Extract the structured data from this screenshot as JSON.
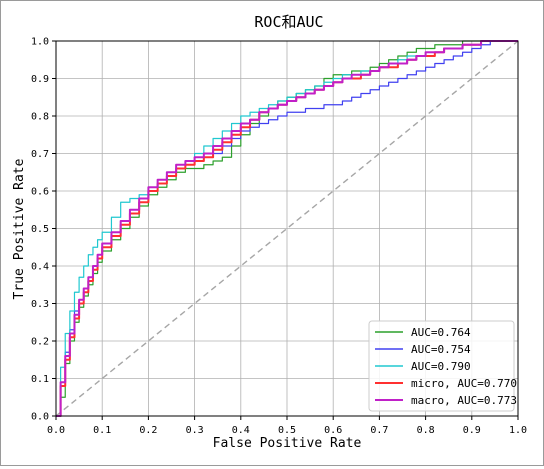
{
  "chart_data": {
    "type": "line",
    "title": "ROC和AUC",
    "xlabel": "False Positive Rate",
    "ylabel": "True Positive Rate",
    "xlim": [
      0.0,
      1.0
    ],
    "ylim": [
      0.0,
      1.0
    ],
    "xticks": [
      "0.0",
      "0.1",
      "0.2",
      "0.3",
      "0.4",
      "0.5",
      "0.6",
      "0.7",
      "0.8",
      "0.9",
      "1.0"
    ],
    "yticks": [
      "0.0",
      "0.1",
      "0.2",
      "0.3",
      "0.4",
      "0.5",
      "0.6",
      "0.7",
      "0.8",
      "0.9",
      "1.0"
    ],
    "grid": true,
    "legend_position": "lower-right",
    "diagonal": {
      "x": [
        0,
        1
      ],
      "y": [
        0,
        1
      ],
      "color": "#a6a6a6",
      "style": "dashed"
    },
    "series": [
      {
        "name": "AUC=0.764",
        "color": "#2ca02c",
        "x": [
          0,
          0.01,
          0.02,
          0.03,
          0.04,
          0.05,
          0.06,
          0.07,
          0.08,
          0.09,
          0.1,
          0.12,
          0.14,
          0.16,
          0.18,
          0.2,
          0.22,
          0.24,
          0.26,
          0.28,
          0.3,
          0.32,
          0.34,
          0.36,
          0.38,
          0.4,
          0.42,
          0.44,
          0.46,
          0.48,
          0.5,
          0.52,
          0.54,
          0.56,
          0.58,
          0.6,
          0.62,
          0.64,
          0.66,
          0.68,
          0.7,
          0.72,
          0.74,
          0.76,
          0.78,
          0.8,
          0.82,
          0.84,
          0.86,
          0.88,
          0.9,
          0.92,
          0.94,
          1.0
        ],
        "y": [
          0,
          0.05,
          0.14,
          0.2,
          0.25,
          0.29,
          0.32,
          0.35,
          0.38,
          0.41,
          0.44,
          0.47,
          0.5,
          0.53,
          0.56,
          0.59,
          0.61,
          0.63,
          0.65,
          0.66,
          0.66,
          0.67,
          0.68,
          0.69,
          0.72,
          0.75,
          0.78,
          0.8,
          0.82,
          0.84,
          0.85,
          0.86,
          0.87,
          0.88,
          0.9,
          0.91,
          0.91,
          0.92,
          0.92,
          0.93,
          0.94,
          0.95,
          0.96,
          0.97,
          0.98,
          0.98,
          0.99,
          0.99,
          0.99,
          1.0,
          1.0,
          1.0,
          1.0,
          1.0
        ]
      },
      {
        "name": "AUC=0.754",
        "color": "#4040f0",
        "x": [
          0,
          0.01,
          0.02,
          0.03,
          0.04,
          0.05,
          0.06,
          0.07,
          0.08,
          0.09,
          0.1,
          0.12,
          0.14,
          0.16,
          0.18,
          0.2,
          0.22,
          0.24,
          0.26,
          0.28,
          0.3,
          0.32,
          0.34,
          0.36,
          0.38,
          0.4,
          0.42,
          0.44,
          0.46,
          0.48,
          0.5,
          0.52,
          0.54,
          0.56,
          0.58,
          0.6,
          0.62,
          0.64,
          0.66,
          0.68,
          0.7,
          0.72,
          0.74,
          0.76,
          0.78,
          0.8,
          0.82,
          0.84,
          0.86,
          0.88,
          0.9,
          0.92,
          0.94,
          1.0
        ],
        "y": [
          0,
          0.09,
          0.17,
          0.23,
          0.28,
          0.31,
          0.34,
          0.37,
          0.39,
          0.42,
          0.45,
          0.48,
          0.51,
          0.54,
          0.57,
          0.6,
          0.62,
          0.64,
          0.66,
          0.67,
          0.68,
          0.69,
          0.7,
          0.72,
          0.74,
          0.76,
          0.77,
          0.78,
          0.79,
          0.8,
          0.81,
          0.81,
          0.82,
          0.82,
          0.83,
          0.83,
          0.84,
          0.85,
          0.86,
          0.87,
          0.88,
          0.89,
          0.9,
          0.91,
          0.92,
          0.93,
          0.94,
          0.95,
          0.96,
          0.97,
          0.98,
          0.99,
          1.0,
          1.0
        ]
      },
      {
        "name": "AUC=0.790",
        "color": "#20c8d0",
        "x": [
          0,
          0.01,
          0.02,
          0.03,
          0.04,
          0.05,
          0.06,
          0.07,
          0.08,
          0.09,
          0.1,
          0.12,
          0.14,
          0.16,
          0.18,
          0.2,
          0.22,
          0.24,
          0.26,
          0.28,
          0.3,
          0.32,
          0.34,
          0.36,
          0.38,
          0.4,
          0.42,
          0.44,
          0.46,
          0.48,
          0.5,
          0.52,
          0.54,
          0.56,
          0.58,
          0.6,
          0.62,
          0.64,
          0.66,
          0.68,
          0.7,
          0.72,
          0.74,
          0.76,
          0.78,
          0.8,
          0.82,
          0.84,
          0.86,
          0.88,
          0.9,
          0.92,
          0.94,
          1.0
        ],
        "y": [
          0,
          0.13,
          0.22,
          0.28,
          0.33,
          0.37,
          0.4,
          0.43,
          0.45,
          0.47,
          0.49,
          0.53,
          0.57,
          0.58,
          0.59,
          0.6,
          0.62,
          0.64,
          0.66,
          0.68,
          0.7,
          0.72,
          0.74,
          0.76,
          0.78,
          0.8,
          0.81,
          0.82,
          0.83,
          0.84,
          0.85,
          0.86,
          0.87,
          0.88,
          0.89,
          0.9,
          0.91,
          0.91,
          0.92,
          0.92,
          0.93,
          0.94,
          0.95,
          0.96,
          0.96,
          0.97,
          0.97,
          0.98,
          0.98,
          0.99,
          0.99,
          1.0,
          1.0,
          1.0
        ]
      },
      {
        "name": "micro, AUC=0.770",
        "color": "#ff3030",
        "x": [
          0,
          0.01,
          0.02,
          0.03,
          0.04,
          0.05,
          0.06,
          0.07,
          0.08,
          0.09,
          0.1,
          0.12,
          0.14,
          0.16,
          0.18,
          0.2,
          0.22,
          0.24,
          0.26,
          0.28,
          0.3,
          0.32,
          0.34,
          0.36,
          0.38,
          0.4,
          0.42,
          0.44,
          0.46,
          0.48,
          0.5,
          0.52,
          0.54,
          0.56,
          0.58,
          0.6,
          0.62,
          0.64,
          0.66,
          0.68,
          0.7,
          0.72,
          0.74,
          0.76,
          0.78,
          0.8,
          0.82,
          0.84,
          0.86,
          0.88,
          0.9,
          0.92,
          0.94,
          1.0
        ],
        "y": [
          0,
          0.08,
          0.15,
          0.21,
          0.26,
          0.3,
          0.33,
          0.36,
          0.39,
          0.42,
          0.45,
          0.48,
          0.51,
          0.54,
          0.57,
          0.6,
          0.62,
          0.64,
          0.66,
          0.67,
          0.68,
          0.69,
          0.71,
          0.73,
          0.75,
          0.77,
          0.79,
          0.81,
          0.82,
          0.83,
          0.84,
          0.85,
          0.86,
          0.87,
          0.88,
          0.89,
          0.9,
          0.9,
          0.91,
          0.92,
          0.93,
          0.93,
          0.94,
          0.95,
          0.96,
          0.96,
          0.97,
          0.98,
          0.98,
          0.99,
          0.99,
          1.0,
          1.0,
          1.0
        ]
      },
      {
        "name": "macro, AUC=0.773",
        "color": "#c020c8",
        "x": [
          0,
          0.01,
          0.02,
          0.03,
          0.04,
          0.05,
          0.06,
          0.07,
          0.08,
          0.09,
          0.1,
          0.12,
          0.14,
          0.16,
          0.18,
          0.2,
          0.22,
          0.24,
          0.26,
          0.28,
          0.3,
          0.32,
          0.34,
          0.36,
          0.38,
          0.4,
          0.42,
          0.44,
          0.46,
          0.48,
          0.5,
          0.52,
          0.54,
          0.56,
          0.58,
          0.6,
          0.62,
          0.64,
          0.66,
          0.68,
          0.7,
          0.72,
          0.74,
          0.76,
          0.78,
          0.8,
          0.82,
          0.84,
          0.86,
          0.88,
          0.9,
          0.92,
          0.94,
          1.0
        ],
        "y": [
          0,
          0.09,
          0.16,
          0.22,
          0.27,
          0.31,
          0.34,
          0.37,
          0.4,
          0.43,
          0.46,
          0.49,
          0.52,
          0.55,
          0.58,
          0.61,
          0.63,
          0.65,
          0.67,
          0.68,
          0.69,
          0.7,
          0.72,
          0.74,
          0.76,
          0.78,
          0.79,
          0.81,
          0.82,
          0.83,
          0.84,
          0.85,
          0.86,
          0.87,
          0.88,
          0.89,
          0.9,
          0.91,
          0.91,
          0.92,
          0.93,
          0.94,
          0.94,
          0.95,
          0.96,
          0.97,
          0.97,
          0.98,
          0.98,
          0.99,
          0.99,
          1.0,
          1.0,
          1.0
        ]
      }
    ]
  }
}
